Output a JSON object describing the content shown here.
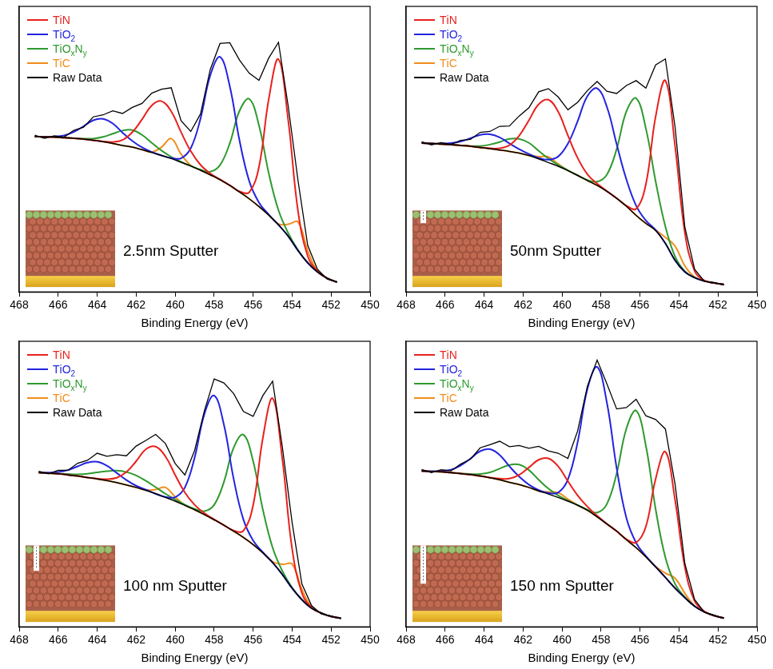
{
  "chart_data": [
    {
      "type": "line",
      "annotation": "2.5nm Sputter",
      "x_label": "Binding Energy (eV)",
      "xlim": [
        468,
        450
      ],
      "xticks": [
        468,
        466,
        464,
        462,
        460,
        458,
        456,
        454,
        452,
        450
      ],
      "ylim": [
        0,
        100
      ],
      "tick_labels": "x",
      "grid": false,
      "legend": "upper left",
      "x": [
        467.2,
        466.7,
        466.2,
        465.7,
        465.2,
        464.7,
        464.2,
        463.7,
        463.2,
        462.7,
        462.2,
        461.7,
        461.2,
        460.7,
        460.2,
        459.7,
        459.2,
        458.7,
        458.2,
        457.7,
        457.2,
        456.7,
        456.2,
        455.7,
        455.2,
        454.7,
        454.2,
        453.7,
        453.2,
        452.7,
        452.2,
        451.7
      ],
      "series": [
        {
          "name": "TiN",
          "color": "#e8211d",
          "values": [
            54.4,
            54.3,
            54.2,
            54.0,
            53.8,
            53.5,
            53.1,
            52.7,
            52.5,
            53.2,
            55.9,
            60.4,
            65.3,
            66.8,
            63.2,
            56.0,
            49.3,
            44.5,
            41.5,
            39.4,
            37.3,
            35.2,
            34.9,
            43.8,
            67.5,
            81.5,
            60.1,
            28.4,
            12.5,
            7.2,
            4.8,
            3.4
          ]
        },
        {
          "name": "TiO2",
          "color": "#2323e0",
          "values": [
            54.4,
            54.3,
            54.4,
            54.8,
            56.0,
            58.0,
            60.1,
            60.6,
            59.0,
            55.8,
            52.9,
            50.6,
            49.0,
            47.8,
            46.9,
            46.8,
            50.3,
            60.7,
            75.8,
            82.3,
            72.1,
            53.1,
            38.8,
            31.3,
            27.1,
            23.5,
            19.5,
            14.5,
            10.2,
            7.0,
            4.8,
            3.4
          ]
        },
        {
          "name": "TiOxNy",
          "color": "#2e9a2e",
          "values": [
            54.4,
            54.3,
            54.2,
            54.0,
            53.8,
            53.7,
            53.7,
            54.3,
            55.4,
            56.5,
            56.7,
            55.0,
            52.2,
            49.5,
            47.3,
            45.6,
            44.1,
            42.8,
            42.1,
            44.4,
            52.0,
            63.4,
            67.6,
            58.3,
            41.6,
            28.6,
            20.6,
            14.7,
            10.2,
            7.0,
            4.8,
            3.4
          ]
        },
        {
          "name": "TiC",
          "color": "#f28c1c",
          "values": [
            54.4,
            54.3,
            54.2,
            54.0,
            53.8,
            53.5,
            53.1,
            52.6,
            52.0,
            51.3,
            50.7,
            49.8,
            49.0,
            50.7,
            53.7,
            48.3,
            44.3,
            42.6,
            41.0,
            39.3,
            37.3,
            35.0,
            32.6,
            29.9,
            26.9,
            23.8,
            23.7,
            24.5,
            14.4,
            7.3,
            4.8,
            3.4
          ]
        },
        {
          "name": "Raw Data",
          "color": "#000000",
          "values": [
            54.9,
            53.8,
            54.7,
            54.2,
            56.6,
            57.7,
            61.3,
            62.0,
            63.4,
            62.5,
            64.6,
            66.0,
            69.6,
            71.0,
            71.5,
            60.0,
            56.2,
            62.3,
            77.9,
            87.0,
            87.3,
            81.2,
            76.6,
            74.1,
            81.9,
            87.4,
            65.0,
            39.1,
            16.3,
            7.9,
            4.5,
            3.6
          ]
        }
      ],
      "background": {
        "color": "#000000",
        "values": [
          54.4,
          54.3,
          54.2,
          54.0,
          53.8,
          53.5,
          53.1,
          52.6,
          52.0,
          51.3,
          50.7,
          49.8,
          48.8,
          47.8,
          46.7,
          45.4,
          44.1,
          42.6,
          41.0,
          39.3,
          37.3,
          35.0,
          32.6,
          29.9,
          26.9,
          23.5,
          19.5,
          14.5,
          10.2,
          7.0,
          4.8,
          3.4
        ]
      }
    },
    {
      "type": "line",
      "annotation": "50nm Sputter",
      "x_label": "Binding Energy (eV)",
      "xlim": [
        468,
        450
      ],
      "xticks": [
        468,
        466,
        464,
        462,
        460,
        458,
        456,
        454,
        452,
        450
      ],
      "ylim": [
        0,
        100
      ],
      "tick_labels": "x",
      "grid": false,
      "legend": "upper left",
      "x": [
        467.2,
        466.7,
        466.2,
        465.7,
        465.2,
        464.7,
        464.2,
        463.7,
        463.2,
        462.7,
        462.2,
        461.7,
        461.2,
        460.7,
        460.2,
        459.7,
        459.2,
        458.7,
        458.2,
        457.7,
        457.2,
        456.7,
        456.2,
        455.7,
        455.2,
        454.7,
        454.2,
        453.7,
        453.2,
        452.7,
        452.2,
        451.7
      ],
      "series": [
        {
          "name": "TiN",
          "color": "#e8211d",
          "values": [
            52.1,
            52.0,
            51.8,
            51.6,
            51.3,
            51.0,
            50.6,
            50.3,
            50.3,
            51.4,
            54.7,
            60.1,
            65.7,
            67.3,
            63.1,
            54.8,
            46.9,
            41.2,
            37.9,
            35.3,
            32.8,
            30.2,
            29.1,
            37.7,
            61.4,
            74.0,
            50.9,
            20.7,
            7.3,
            4.0,
            3.1,
            2.6
          ]
        },
        {
          "name": "TiO2",
          "color": "#2323e0",
          "values": [
            52.1,
            52.0,
            51.9,
            52.1,
            52.7,
            53.8,
            55.0,
            55.2,
            54.1,
            52.0,
            50.0,
            48.3,
            46.9,
            46.3,
            47.4,
            51.9,
            59.8,
            68.6,
            71.3,
            64.8,
            51.8,
            39.4,
            30.2,
            25.0,
            21.7,
            17.0,
            11.0,
            7.0,
            5.0,
            3.8,
            3.1,
            2.6
          ]
        },
        {
          "name": "TiOxNy",
          "color": "#2e9a2e",
          "values": [
            52.1,
            52.0,
            51.8,
            51.6,
            51.3,
            51.1,
            51.1,
            51.6,
            52.5,
            53.6,
            53.6,
            52.2,
            49.4,
            46.7,
            44.5,
            42.6,
            40.8,
            39.2,
            38.6,
            41.1,
            50.0,
            63.2,
            67.8,
            57.2,
            38.7,
            22.9,
            12.3,
            7.2,
            5.0,
            3.8,
            3.1,
            2.6
          ]
        },
        {
          "name": "TiC",
          "color": "#f28c1c",
          "values": [
            52.1,
            52.0,
            51.8,
            51.6,
            51.3,
            51.0,
            50.6,
            50.2,
            49.7,
            49.2,
            48.6,
            47.8,
            47.4,
            47.3,
            44.8,
            42.5,
            40.8,
            39.0,
            37.3,
            35.2,
            32.8,
            30.0,
            26.8,
            24.0,
            21.7,
            19.1,
            16.0,
            9.1,
            5.2,
            3.8,
            3.1,
            2.6
          ]
        },
        {
          "name": "Raw Data",
          "color": "#000000",
          "values": [
            52.6,
            51.5,
            52.3,
            51.7,
            53.1,
            53.4,
            55.9,
            56.2,
            58.0,
            58.1,
            61.6,
            64.5,
            70.1,
            71.2,
            68.3,
            63.8,
            66.4,
            70.5,
            73.7,
            70.3,
            69.5,
            72.3,
            74.0,
            71.4,
            79.5,
            81.6,
            57.6,
            22.6,
            7.9,
            3.7,
            3.3,
            2.4
          ]
        }
      ],
      "background": {
        "color": "#000000",
        "values": [
          52.1,
          52.0,
          51.8,
          51.6,
          51.3,
          51.0,
          50.6,
          50.2,
          49.7,
          49.2,
          48.6,
          47.8,
          46.6,
          45.3,
          44.0,
          42.5,
          40.8,
          39.0,
          37.3,
          35.2,
          32.8,
          30.0,
          26.8,
          24.0,
          21.5,
          17.0,
          11.0,
          7.0,
          5.0,
          3.8,
          3.1,
          2.6
        ]
      }
    },
    {
      "type": "line",
      "annotation": "100 nm Sputter",
      "x_label": "Binding Energy (eV)",
      "xlim": [
        468,
        450
      ],
      "xticks": [
        468,
        466,
        464,
        462,
        460,
        458,
        456,
        454,
        452,
        450
      ],
      "ylim": [
        0,
        100
      ],
      "tick_labels": "x",
      "grid": false,
      "legend": "upper left",
      "x": [
        467,
        466.5,
        466,
        465.5,
        465,
        464.5,
        464,
        463.5,
        463,
        462.5,
        462,
        461.5,
        461,
        460.5,
        460,
        459.5,
        459,
        458.5,
        458,
        457.5,
        457,
        456.5,
        456,
        455.5,
        455,
        454.5,
        454,
        453.5,
        453,
        452.5,
        452,
        451.5
      ],
      "series": [
        {
          "name": "TiN",
          "color": "#e8211d",
          "values": [
            54.0,
            53.8,
            53.6,
            53.2,
            52.8,
            52.3,
            51.9,
            51.7,
            52.2,
            54.2,
            58.0,
            62.2,
            63.1,
            59.7,
            53.2,
            47.0,
            42.7,
            39.8,
            37.6,
            35.6,
            33.7,
            33.6,
            42.6,
            66.2,
            80.0,
            58.6,
            27.3,
            11.8,
            6.7,
            4.8,
            3.6,
            3.0
          ]
        },
        {
          "name": "TiO2",
          "color": "#2323e0",
          "values": [
            54.0,
            54.0,
            54.2,
            54.9,
            56.2,
            57.5,
            57.8,
            56.4,
            53.9,
            51.4,
            49.4,
            48.0,
            46.6,
            45.5,
            45.4,
            48.8,
            59.3,
            74.5,
            81.0,
            70.8,
            51.8,
            37.6,
            30.2,
            26.1,
            22.5,
            18.3,
            13.5,
            9.5,
            6.5,
            4.8,
            3.6,
            3.0
          ]
        },
        {
          "name": "TiOxNy",
          "color": "#2e9a2e",
          "values": [
            54.0,
            53.8,
            53.7,
            53.5,
            53.4,
            53.6,
            54.1,
            54.5,
            54.7,
            54.2,
            53.0,
            51.1,
            48.9,
            46.6,
            44.6,
            42.8,
            41.3,
            40.5,
            42.7,
            50.7,
            62.7,
            67.3,
            58.0,
            41.0,
            27.7,
            19.5,
            13.7,
            9.5,
            6.5,
            4.8,
            3.6,
            3.0
          ]
        },
        {
          "name": "TiC",
          "color": "#f28c1c",
          "values": [
            54.0,
            53.8,
            53.6,
            53.2,
            52.8,
            52.3,
            51.8,
            51.2,
            50.5,
            49.7,
            48.8,
            47.9,
            48.1,
            48.8,
            45.5,
            42.6,
            41.0,
            39.3,
            37.5,
            35.6,
            33.5,
            31.3,
            28.8,
            25.9,
            22.8,
            21.9,
            22.0,
            13.1,
            6.8,
            4.8,
            3.6,
            3.0
          ]
        },
        {
          "name": "Raw Data",
          "color": "#000000",
          "values": [
            54.5,
            53.6,
            54.8,
            54.8,
            57.3,
            58.3,
            60.8,
            59.7,
            60.3,
            59.9,
            63.3,
            65.3,
            67.4,
            64.2,
            57.2,
            53.2,
            61.8,
            75.7,
            86.8,
            85.4,
            81.7,
            75.4,
            73.7,
            81.0,
            86.0,
            62.9,
            36.5,
            15.0,
            7.4,
            4.5,
            3.8,
            2.8
          ]
        }
      ],
      "background": {
        "color": "#000000",
        "values": [
          54.0,
          53.8,
          53.6,
          53.2,
          52.8,
          52.3,
          51.8,
          51.2,
          50.5,
          49.7,
          48.8,
          47.8,
          46.6,
          45.3,
          44.0,
          42.5,
          41.0,
          39.3,
          37.5,
          35.6,
          33.5,
          31.3,
          28.8,
          25.9,
          22.5,
          18.3,
          13.5,
          9.5,
          6.5,
          4.8,
          3.6,
          3.0
        ]
      }
    },
    {
      "type": "line",
      "annotation": "150 nm Sputter",
      "x_label": "Binding Energy (eV)",
      "xlim": [
        468,
        450
      ],
      "xticks": [
        468,
        466,
        464,
        462,
        460,
        458,
        456,
        454,
        452,
        450
      ],
      "ylim": [
        0,
        100
      ],
      "tick_labels": "x",
      "grid": false,
      "legend": "upper left",
      "x": [
        467.2,
        466.7,
        466.2,
        465.7,
        465.2,
        464.7,
        464.2,
        463.7,
        463.2,
        462.7,
        462.2,
        461.7,
        461.2,
        460.7,
        460.2,
        459.7,
        459.2,
        458.7,
        458.2,
        457.7,
        457.2,
        456.7,
        456.2,
        455.7,
        455.2,
        454.7,
        454.2,
        453.7,
        453.2,
        452.7,
        452.2,
        451.7
      ],
      "series": [
        {
          "name": "TiN",
          "color": "#e8211d",
          "values": [
            54.6,
            54.4,
            54.3,
            54.0,
            53.7,
            53.3,
            52.8,
            52.3,
            51.9,
            51.9,
            53.2,
            55.8,
            58.5,
            59.0,
            56.2,
            51.0,
            46.0,
            42.1,
            38.9,
            36.1,
            33.5,
            30.7,
            29.5,
            35.1,
            51.8,
            61.3,
            44.3,
            20.8,
            9.0,
            5.4,
            3.9,
            3.1
          ]
        },
        {
          "name": "TiO2",
          "color": "#2323e0",
          "values": [
            54.6,
            54.5,
            54.6,
            55.0,
            56.5,
            58.9,
            61.5,
            62.2,
            60.2,
            56.2,
            52.6,
            49.8,
            47.9,
            46.9,
            47.0,
            51.6,
            64.7,
            83.3,
            91.0,
            78.5,
            55.6,
            38.1,
            29.4,
            24.8,
            21.0,
            17.3,
            13.5,
            10.2,
            7.2,
            5.2,
            3.9,
            3.1
          ]
        },
        {
          "name": "TiOxNy",
          "color": "#2e9a2e",
          "values": [
            54.6,
            54.4,
            54.3,
            54.0,
            53.7,
            53.5,
            53.5,
            54.1,
            55.4,
            56.7,
            56.8,
            54.9,
            51.5,
            48.4,
            46.0,
            44.2,
            42.6,
            41.0,
            40.0,
            43.0,
            53.7,
            69.4,
            75.7,
            63.4,
            41.2,
            24.3,
            15.0,
            10.4,
            7.2,
            5.2,
            3.9,
            3.1
          ]
        },
        {
          "name": "TiC",
          "color": "#f28c1c",
          "values": [
            54.6,
            54.4,
            54.3,
            54.0,
            53.7,
            53.3,
            52.8,
            52.2,
            51.5,
            50.6,
            49.8,
            48.8,
            47.6,
            47.2,
            47.0,
            44.7,
            42.6,
            40.8,
            38.5,
            36.0,
            33.5,
            30.5,
            27.7,
            24.5,
            21.1,
            18.8,
            17.0,
            11.7,
            7.3,
            5.2,
            3.9,
            3.1
          ]
        },
        {
          "name": "Raw Data",
          "color": "#000000",
          "values": [
            55.1,
            54.0,
            55.0,
            54.6,
            57.0,
            58.7,
            62.7,
            63.8,
            65.0,
            63.1,
            63.5,
            62.5,
            63.2,
            61.6,
            60.8,
            59.0,
            68.6,
            84.3,
            93.4,
            85.1,
            76.3,
            76.8,
            79.7,
            73.9,
            72.6,
            69.3,
            49.8,
            22.1,
            9.5,
            5.1,
            4.1,
            2.9
          ]
        }
      ],
      "background": {
        "color": "#000000",
        "values": [
          54.6,
          54.4,
          54.3,
          54.0,
          53.7,
          53.3,
          52.8,
          52.2,
          51.5,
          50.6,
          49.8,
          48.8,
          47.6,
          46.5,
          45.3,
          44.0,
          42.6,
          40.8,
          38.5,
          36.0,
          33.5,
          30.5,
          27.7,
          24.5,
          21.0,
          17.3,
          13.5,
          10.2,
          7.2,
          5.2,
          3.9,
          3.1
        ]
      }
    }
  ]
}
